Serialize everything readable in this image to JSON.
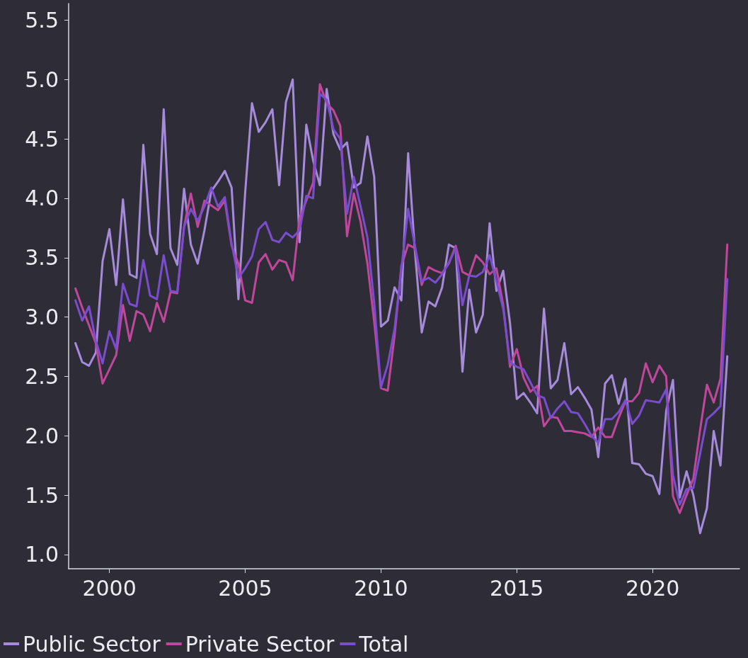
{
  "chart_data": {
    "type": "line",
    "xlim": [
      1998.5,
      2023.2
    ],
    "xticks": [
      2000,
      2005,
      2010,
      2015,
      2020
    ],
    "ylim": [
      0.88,
      5.64
    ],
    "yticks": [
      {
        "value": 1,
        "label": "1.0"
      },
      {
        "value": 1.5,
        "label": "1.5"
      },
      {
        "value": 2,
        "label": "2.0"
      },
      {
        "value": 2.5,
        "label": "2.5"
      },
      {
        "value": 3,
        "label": "3.0"
      },
      {
        "value": 3.5,
        "label": "3.5"
      },
      {
        "value": 4,
        "label": "4.0"
      },
      {
        "value": 4.5,
        "label": "4.5"
      },
      {
        "value": 5,
        "label": "5.0"
      },
      {
        "value": 5.5,
        "label": "5.5"
      }
    ],
    "grid": false,
    "legend": "bottom left",
    "marker": "none",
    "line_style": "solid",
    "x": [
      1998.75,
      1999,
      1999.25,
      1999.5,
      1999.75,
      2000,
      2000.25,
      2000.5,
      2000.75,
      2001,
      2001.25,
      2001.5,
      2001.75,
      2002,
      2002.25,
      2002.5,
      2002.75,
      2003,
      2003.25,
      2003.5,
      2003.75,
      2004,
      2004.25,
      2004.5,
      2004.75,
      2005,
      2005.25,
      2005.5,
      2005.75,
      2006,
      2006.25,
      2006.5,
      2006.75,
      2007,
      2007.25,
      2007.5,
      2007.75,
      2008,
      2008.25,
      2008.5,
      2008.75,
      2009,
      2009.25,
      2009.5,
      2009.75,
      2010,
      2010.25,
      2010.5,
      2010.75,
      2011,
      2011.25,
      2011.5,
      2011.75,
      2012,
      2012.25,
      2012.5,
      2012.75,
      2013,
      2013.25,
      2013.5,
      2013.75,
      2014,
      2014.25,
      2014.5,
      2014.75,
      2015,
      2015.25,
      2015.5,
      2015.75,
      2016,
      2016.25,
      2016.5,
      2016.75,
      2017,
      2017.25,
      2017.5,
      2017.75,
      2018,
      2018.25,
      2018.5,
      2018.75,
      2019,
      2019.25,
      2019.5,
      2019.75,
      2020,
      2020.25,
      2020.5,
      2020.75,
      2021,
      2021.25,
      2021.5,
      2021.75,
      2022,
      2022.25,
      2022.5,
      2022.75
    ],
    "series": [
      {
        "name": "Public Sector",
        "color": "#a78bdb",
        "values": [
          2.78,
          2.62,
          2.59,
          2.7,
          3.47,
          3.74,
          3.27,
          3.99,
          3.36,
          3.33,
          4.45,
          3.7,
          3.53,
          4.75,
          3.58,
          3.44,
          4.08,
          3.61,
          3.45,
          3.73,
          4.06,
          4.14,
          4.23,
          4.09,
          3.15,
          4.05,
          4.8,
          4.56,
          4.64,
          4.75,
          4.11,
          4.81,
          5.0,
          3.63,
          4.62,
          4.32,
          4.11,
          4.92,
          4.54,
          4.41,
          4.47,
          4.09,
          4.13,
          4.52,
          4.18,
          2.92,
          2.97,
          3.25,
          3.14,
          4.38,
          3.55,
          2.87,
          3.13,
          3.09,
          3.25,
          3.61,
          3.58,
          2.54,
          3.23,
          2.87,
          3.02,
          3.79,
          3.22,
          3.39,
          2.95,
          2.31,
          2.36,
          2.28,
          2.19,
          3.07,
          2.4,
          2.47,
          2.78,
          2.35,
          2.41,
          2.32,
          2.22,
          1.82,
          2.44,
          2.51,
          2.27,
          2.48,
          1.77,
          1.76,
          1.68,
          1.66,
          1.51,
          2.21,
          2.47,
          1.48,
          1.7,
          1.5,
          1.18,
          1.39,
          2.04,
          1.75,
          2.67
        ]
      },
      {
        "name": "Private Sector",
        "color": "#c0479b",
        "values": [
          3.24,
          3.08,
          2.93,
          2.78,
          2.44,
          2.56,
          2.68,
          3.1,
          2.8,
          3.05,
          3.02,
          2.88,
          3.12,
          2.96,
          3.21,
          3.2,
          3.76,
          4.04,
          3.76,
          3.98,
          3.94,
          3.9,
          3.98,
          3.6,
          3.45,
          3.14,
          3.12,
          3.46,
          3.53,
          3.4,
          3.48,
          3.46,
          3.31,
          3.83,
          3.98,
          4.13,
          4.96,
          4.8,
          4.74,
          4.61,
          3.68,
          4.04,
          3.8,
          3.45,
          2.96,
          2.4,
          2.38,
          2.84,
          3.43,
          3.61,
          3.58,
          3.27,
          3.42,
          3.39,
          3.37,
          3.45,
          3.6,
          3.38,
          3.35,
          3.52,
          3.46,
          3.36,
          3.41,
          3.1,
          2.58,
          2.73,
          2.49,
          2.37,
          2.42,
          2.08,
          2.16,
          2.15,
          2.04,
          2.04,
          2.03,
          2.02,
          1.99,
          2.07,
          1.99,
          1.99,
          2.15,
          2.29,
          2.29,
          2.36,
          2.61,
          2.45,
          2.59,
          2.5,
          1.49,
          1.35,
          1.5,
          1.64,
          2.05,
          2.43,
          2.28,
          2.48,
          3.61
        ]
      },
      {
        "name": "Total",
        "color": "#7a4dcf",
        "values": [
          3.14,
          2.97,
          3.09,
          2.8,
          2.61,
          2.88,
          2.73,
          3.28,
          3.11,
          3.09,
          3.48,
          3.18,
          3.15,
          3.52,
          3.22,
          3.21,
          3.76,
          3.91,
          3.81,
          3.93,
          4.09,
          3.93,
          4.01,
          3.62,
          3.33,
          3.41,
          3.51,
          3.74,
          3.8,
          3.65,
          3.63,
          3.71,
          3.67,
          3.73,
          4.02,
          4.0,
          4.88,
          4.83,
          4.58,
          4.5,
          3.87,
          4.18,
          3.93,
          3.67,
          3.12,
          2.41,
          2.6,
          2.9,
          3.4,
          3.91,
          3.6,
          3.3,
          3.33,
          3.29,
          3.36,
          3.46,
          3.58,
          3.1,
          3.35,
          3.34,
          3.38,
          3.52,
          3.3,
          3.07,
          2.62,
          2.58,
          2.56,
          2.45,
          2.34,
          2.32,
          2.15,
          2.23,
          2.29,
          2.2,
          2.19,
          2.1,
          2.0,
          1.94,
          2.14,
          2.14,
          2.2,
          2.3,
          2.1,
          2.17,
          2.3,
          2.29,
          2.28,
          2.39,
          1.67,
          1.42,
          1.55,
          1.56,
          1.85,
          2.14,
          2.19,
          2.25,
          3.32
        ]
      }
    ]
  }
}
